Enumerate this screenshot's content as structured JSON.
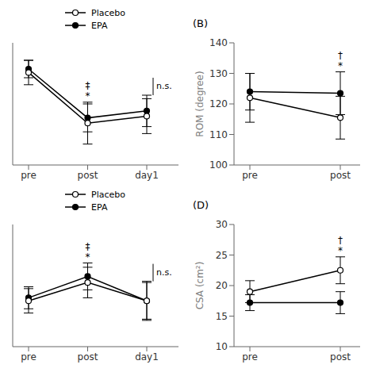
{
  "chart_data": [
    {
      "type": "line",
      "categories": [
        "pre",
        "post",
        "day1"
      ],
      "series": [
        {
          "name": "Placebo",
          "color": "#000000",
          "marker": "open_circle",
          "values": [
            148,
            119,
            123
          ],
          "errors": [
            7,
            12,
            10
          ]
        },
        {
          "name": "EPA",
          "color": "#000000",
          "marker": "filled_circle",
          "values": [
            150,
            122,
            126
          ],
          "errors": [
            5,
            8,
            9
          ]
        }
      ],
      "ylim": [
        95,
        165
      ],
      "tick_labels": "x",
      "legend": "top",
      "annotations": [
        {
          "text": "‡",
          "x": "post"
        },
        {
          "text": "*",
          "x": "post"
        }
      ],
      "bracket": {
        "text": "n.s.",
        "x": "day1",
        "series": "EPA"
      }
    },
    {
      "type": "line",
      "title": "(B)",
      "y_label": "ROM (degree)",
      "categories": [
        "pre",
        "post"
      ],
      "series": [
        {
          "name": "Placebo",
          "color": "#000000",
          "marker": "open_circle",
          "values": [
            122,
            115.5
          ],
          "errors": [
            8,
            7
          ]
        },
        {
          "name": "EPA",
          "color": "#000000",
          "marker": "filled_circle",
          "values": [
            124,
            123.5
          ],
          "errors": [
            6,
            7
          ]
        }
      ],
      "ylim": [
        100,
        140
      ],
      "yticks": [
        100,
        110,
        120,
        130,
        140
      ],
      "legend": false,
      "annotations": [
        {
          "text": "†",
          "x": "post"
        },
        {
          "text": "*",
          "x": "post"
        }
      ]
    },
    {
      "type": "line",
      "categories": [
        "pre",
        "post",
        "day1"
      ],
      "series": [
        {
          "name": "Placebo",
          "color": "#000000",
          "marker": "open_circle",
          "values": [
            16.5,
            19.5,
            16.5
          ],
          "errors": [
            2.0,
            2.5,
            3.0
          ]
        },
        {
          "name": "EPA",
          "color": "#000000",
          "marker": "filled_circle",
          "values": [
            17.0,
            20.5,
            16.5
          ],
          "errors": [
            1.8,
            2.2,
            3.2
          ]
        }
      ],
      "ylim": [
        9,
        29
      ],
      "tick_labels": "x",
      "legend": "top",
      "annotations": [
        {
          "text": "‡",
          "x": "post"
        },
        {
          "text": "*",
          "x": "post"
        }
      ],
      "bracket": {
        "text": "n.s.",
        "x": "day1",
        "series": "EPA"
      }
    },
    {
      "type": "line",
      "title": "(D)",
      "y_label": "CSA (cm²)",
      "categories": [
        "pre",
        "post"
      ],
      "series": [
        {
          "name": "Placebo",
          "color": "#000000",
          "marker": "open_circle",
          "values": [
            19.0,
            22.5
          ],
          "errors": [
            1.8,
            2.2
          ]
        },
        {
          "name": "EPA",
          "color": "#000000",
          "marker": "filled_circle",
          "values": [
            17.2,
            17.2
          ],
          "errors": [
            1.3,
            1.8
          ]
        }
      ],
      "ylim": [
        10,
        30
      ],
      "yticks": [
        10,
        15,
        20,
        25,
        30
      ],
      "legend": false,
      "annotations": [
        {
          "text": "†",
          "x": "post"
        },
        {
          "text": "*",
          "x": "post"
        }
      ]
    }
  ]
}
